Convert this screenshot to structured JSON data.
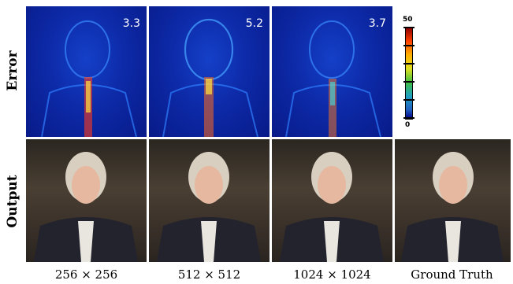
{
  "rows": {
    "error_label": "Error",
    "output_label": "Output"
  },
  "error_values": [
    "3.3",
    "5.2",
    "3.7"
  ],
  "columns": [
    "256 × 256",
    "512 × 512",
    "1024 × 1024",
    "Ground Truth"
  ],
  "colorbar": {
    "max_label": "50",
    "min_label": "0",
    "colormap": [
      "#8b0000",
      "#ff4000",
      "#ffb000",
      "#e0e020",
      "#40c040",
      "#20a0c0",
      "#2060c0",
      "#00008b"
    ]
  }
}
